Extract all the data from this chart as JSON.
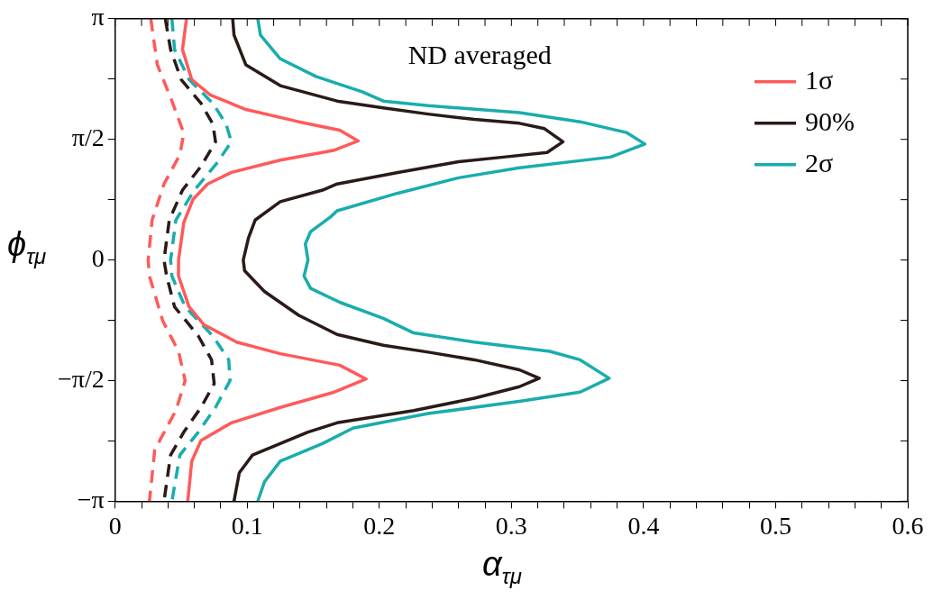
{
  "chart_data": {
    "type": "line",
    "xlabel": "α$_{τμ}$",
    "ylabel": "ϕ$_{τμ}$",
    "annotations": [
      "ND averaged"
    ],
    "xlim": [
      0,
      0.6
    ],
    "ylim": [
      -3.1416,
      3.1416
    ],
    "xticks": [
      0,
      {
        "value": 0.02,
        "label": null
      },
      {
        "value": 0.04,
        "label": null
      },
      {
        "value": 0.06,
        "label": null
      },
      {
        "value": 0.08,
        "label": null
      },
      0.1,
      {
        "value": 0.12,
        "label": null
      },
      {
        "value": 0.14,
        "label": null
      },
      {
        "value": 0.16,
        "label": null
      },
      {
        "value": 0.18,
        "label": null
      },
      0.2,
      {
        "value": 0.22,
        "label": null
      },
      {
        "value": 0.24,
        "label": null
      },
      {
        "value": 0.26,
        "label": null
      },
      {
        "value": 0.28,
        "label": null
      },
      0.3,
      {
        "value": 0.32,
        "label": null
      },
      {
        "value": 0.34,
        "label": null
      },
      {
        "value": 0.36,
        "label": null
      },
      {
        "value": 0.38,
        "label": null
      },
      0.4,
      {
        "value": 0.42,
        "label": null
      },
      {
        "value": 0.44,
        "label": null
      },
      {
        "value": 0.46,
        "label": null
      },
      {
        "value": 0.48,
        "label": null
      },
      0.5,
      {
        "value": 0.52,
        "label": null
      },
      {
        "value": 0.54,
        "label": null
      },
      {
        "value": 0.56,
        "label": null
      },
      {
        "value": 0.58,
        "label": null
      },
      0.6
    ],
    "yticks": [
      {
        "value": -3.1416,
        "label": "−π"
      },
      {
        "value": -2.3562,
        "label": null
      },
      {
        "value": -1.5708,
        "label": "−π/2"
      },
      {
        "value": -0.7854,
        "label": null
      },
      0,
      {
        "value": 0.7854,
        "label": null
      },
      {
        "value": 1.5708,
        "label": "π/2"
      },
      {
        "value": 2.3562,
        "label": null
      },
      {
        "value": 3.1416,
        "label": "π"
      }
    ],
    "legend": "top right",
    "marker": "none",
    "series": [
      {
        "name": "1σ",
        "color": "#ff5a5a",
        "line_style": "solid",
        "x": [
          0.054,
          0.051,
          0.058,
          0.072,
          0.099,
          0.139,
          0.17,
          0.184,
          0.166,
          0.125,
          0.088,
          0.07,
          0.059,
          0.052,
          0.048,
          0.048,
          0.056,
          0.067,
          0.092,
          0.125,
          0.17,
          0.19,
          0.166,
          0.125,
          0.088,
          0.065,
          0.058,
          0.055
        ],
        "values": [
          3.14,
          2.74,
          2.35,
          2.15,
          1.96,
          1.8,
          1.69,
          1.55,
          1.43,
          1.3,
          1.14,
          0.99,
          0.79,
          0.49,
          0,
          -0.21,
          -0.61,
          -0.84,
          -1.07,
          -1.22,
          -1.37,
          -1.55,
          -1.72,
          -1.92,
          -2.12,
          -2.35,
          -2.62,
          -3.14
        ]
      },
      {
        "name": "90%",
        "color": "#2a1a18",
        "line_style": "solid",
        "x": [
          0.089,
          0.09,
          0.099,
          0.125,
          0.168,
          0.203,
          0.237,
          0.272,
          0.306,
          0.325,
          0.339,
          0.327,
          0.294,
          0.26,
          0.214,
          0.168,
          0.157,
          0.125,
          0.106,
          0.101,
          0.097,
          0.098,
          0.113,
          0.139,
          0.168,
          0.203,
          0.237,
          0.272,
          0.306,
          0.321,
          0.306,
          0.272,
          0.226,
          0.168,
          0.146,
          0.104,
          0.094,
          0.09
        ],
        "values": [
          3.14,
          2.93,
          2.54,
          2.27,
          2.07,
          1.98,
          1.9,
          1.83,
          1.78,
          1.71,
          1.54,
          1.4,
          1.34,
          1.28,
          1.14,
          0.99,
          0.91,
          0.76,
          0.52,
          0.29,
          0,
          -0.14,
          -0.41,
          -0.72,
          -0.97,
          -1.11,
          -1.2,
          -1.3,
          -1.43,
          -1.54,
          -1.65,
          -1.8,
          -1.96,
          -2.12,
          -2.24,
          -2.54,
          -2.77,
          -3.14
        ]
      },
      {
        "name": "2σ",
        "color": "#1aacac",
        "line_style": "solid",
        "x": [
          0.108,
          0.11,
          0.125,
          0.152,
          0.187,
          0.203,
          0.237,
          0.306,
          0.352,
          0.387,
          0.401,
          0.375,
          0.306,
          0.26,
          0.214,
          0.168,
          0.163,
          0.148,
          0.144,
          0.146,
          0.143,
          0.148,
          0.17,
          0.203,
          0.226,
          0.272,
          0.329,
          0.352,
          0.374,
          0.352,
          0.306,
          0.237,
          0.18,
          0.157,
          0.125,
          0.113,
          0.108
        ],
        "values": [
          3.14,
          2.93,
          2.62,
          2.39,
          2.19,
          2.07,
          2.01,
          1.92,
          1.8,
          1.66,
          1.51,
          1.34,
          1.2,
          1.07,
          0.87,
          0.64,
          0.56,
          0.37,
          0.21,
          0,
          -0.21,
          -0.37,
          -0.55,
          -0.76,
          -0.95,
          -1.07,
          -1.19,
          -1.3,
          -1.54,
          -1.72,
          -1.84,
          -2.0,
          -2.19,
          -2.39,
          -2.62,
          -2.89,
          -3.14
        ]
      },
      {
        "color": "#ff5a5a",
        "line_style": "dashed",
        "x": [
          0.027,
          0.032,
          0.043,
          0.052,
          0.049,
          0.037,
          0.028,
          0.025,
          0.026,
          0.036,
          0.048,
          0.053,
          0.046,
          0.03,
          0.026
        ],
        "values": [
          3.14,
          2.54,
          2.07,
          1.65,
          1.37,
          0.99,
          0.52,
          0,
          -0.21,
          -0.79,
          -1.19,
          -1.57,
          -1.96,
          -2.47,
          -3.14
        ]
      },
      {
        "color": "#2a1a18",
        "line_style": "dashed",
        "x": [
          0.038,
          0.042,
          0.05,
          0.065,
          0.074,
          0.076,
          0.065,
          0.051,
          0.041,
          0.037,
          0.039,
          0.045,
          0.063,
          0.073,
          0.075,
          0.065,
          0.052,
          0.042,
          0.037
        ],
        "values": [
          3.14,
          2.74,
          2.35,
          2.04,
          1.77,
          1.54,
          1.22,
          0.91,
          0.52,
          0,
          -0.21,
          -0.61,
          -0.99,
          -1.3,
          -1.61,
          -1.92,
          -2.24,
          -2.54,
          -3.14
        ]
      },
      {
        "color": "#1aacac",
        "line_style": "dashed",
        "x": [
          0.043,
          0.045,
          0.056,
          0.074,
          0.084,
          0.088,
          0.077,
          0.06,
          0.046,
          0.042,
          0.043,
          0.053,
          0.074,
          0.086,
          0.087,
          0.076,
          0.063,
          0.049,
          0.043
        ],
        "values": [
          3.14,
          2.74,
          2.35,
          2.04,
          1.77,
          1.54,
          1.26,
          0.91,
          0.52,
          0,
          -0.21,
          -0.61,
          -0.99,
          -1.3,
          -1.57,
          -1.92,
          -2.24,
          -2.54,
          -3.14
        ]
      }
    ]
  }
}
